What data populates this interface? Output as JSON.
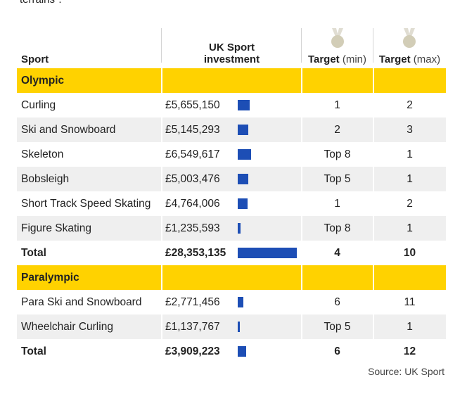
{
  "top_note": "terrains\".",
  "headers": {
    "sport": "Sport",
    "investment_line1": "UK Sport",
    "investment_line2": "investment",
    "target_min_bold": "Target",
    "target_min_light": "(min)",
    "target_max_bold": "Target",
    "target_max_light": "(max)"
  },
  "colors": {
    "section": "#ffd200",
    "bar": "#1d4eb5",
    "alt_row": "#efefef"
  },
  "chart_data": {
    "type": "table",
    "columns": [
      "Sport",
      "UK Sport investment",
      "Target (min)",
      "Target (max)"
    ],
    "sections": [
      {
        "name": "Olympic",
        "rows": [
          {
            "sport": "Curling",
            "investment_label": "£5,655,150",
            "investment": 5655150,
            "min": "1",
            "max": "2"
          },
          {
            "sport": "Ski and Snowboard",
            "investment_label": "£5,145,293",
            "investment": 5145293,
            "min": "2",
            "max": "3"
          },
          {
            "sport": "Skeleton",
            "investment_label": "£6,549,617",
            "investment": 6549617,
            "min": "Top 8",
            "max": "1"
          },
          {
            "sport": "Bobsleigh",
            "investment_label": "£5,003,476",
            "investment": 5003476,
            "min": "Top 5",
            "max": "1"
          },
          {
            "sport": "Short Track Speed Skating",
            "investment_label": "£4,764,006",
            "investment": 4764006,
            "min": "1",
            "max": "2"
          },
          {
            "sport": "Figure Skating",
            "investment_label": "£1,235,593",
            "investment": 1235593,
            "min": "Top 8",
            "max": "1"
          }
        ],
        "total": {
          "sport": "Total",
          "investment_label": "£28,353,135",
          "investment": 28353135,
          "min": "4",
          "max": "10"
        }
      },
      {
        "name": "Paralympic",
        "rows": [
          {
            "sport": "Para Ski and Snowboard",
            "investment_label": "£2,771,456",
            "investment": 2771456,
            "min": "6",
            "max": "11"
          },
          {
            "sport": "Wheelchair Curling",
            "investment_label": "£1,137,767",
            "investment": 1137767,
            "min": "Top 5",
            "max": "1"
          }
        ],
        "total": {
          "sport": "Total",
          "investment_label": "£3,909,223",
          "investment": 3909223,
          "min": "6",
          "max": "12"
        }
      }
    ]
  },
  "source": "Source: UK Sport"
}
